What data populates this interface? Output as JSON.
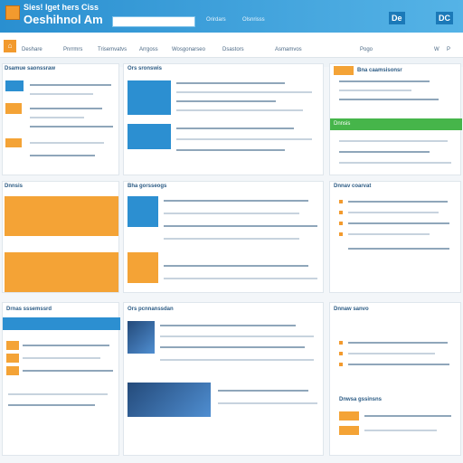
{
  "header": {
    "brand_top": "Sies! Iget hers Ciss",
    "brand_main": "Oeshihnol Am",
    "links": [
      "Orirdars",
      "Olsnrisss"
    ],
    "buttons": [
      "De",
      "DC"
    ]
  },
  "nav": {
    "home": "⌂",
    "items": [
      "Deshare",
      "Pnrrmrs",
      "Trisemvatvs",
      "Arrgoss",
      "Wosgonarseo",
      "Dsastors",
      "Asmamvos",
      "Pogo"
    ],
    "right": [
      "W",
      "P"
    ]
  },
  "panels": {
    "p1_title": "Dsamue saonssraw",
    "p2_title": "Ors sronswis",
    "p3_title": "Bna caamsisonsr",
    "p4_title": "Dnnsis",
    "p5_title": "Bha gorsseogs",
    "p6_title": "Dnnav coarvat",
    "p7_title": "Drnas sssemssrd",
    "p8_title": "Ors pcnnanssdan",
    "p9_title": "Dnnaw sanvo",
    "p10_title": "Dnwsa gssinsns"
  }
}
